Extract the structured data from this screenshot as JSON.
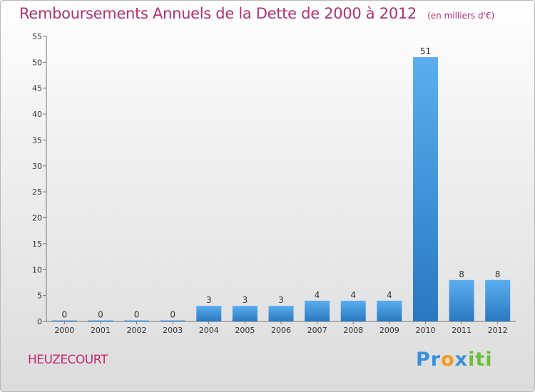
{
  "header": {
    "title": "Remboursements Annuels de la Dette de 2000 à 2012",
    "unit": "(en milliers d'€)"
  },
  "footer": {
    "place": "HEUZECOURT",
    "logo": "Proxiti"
  },
  "chart_data": {
    "type": "bar",
    "title": "Remboursements Annuels de la Dette de 2000 à 2012",
    "subtitle": "(en milliers d'€)",
    "categories": [
      "2000",
      "2001",
      "2002",
      "2003",
      "2004",
      "2005",
      "2006",
      "2007",
      "2008",
      "2009",
      "2010",
      "2011",
      "2012"
    ],
    "values": [
      0,
      0,
      0,
      0,
      3,
      3,
      3,
      4,
      4,
      4,
      51,
      8,
      8
    ],
    "ylim": [
      0,
      55
    ],
    "yticks": [
      0,
      5,
      10,
      15,
      20,
      25,
      30,
      35,
      40,
      45,
      50,
      55
    ],
    "grid": false,
    "bar_color": "#4a9ee0",
    "title_color": "#b03070"
  }
}
